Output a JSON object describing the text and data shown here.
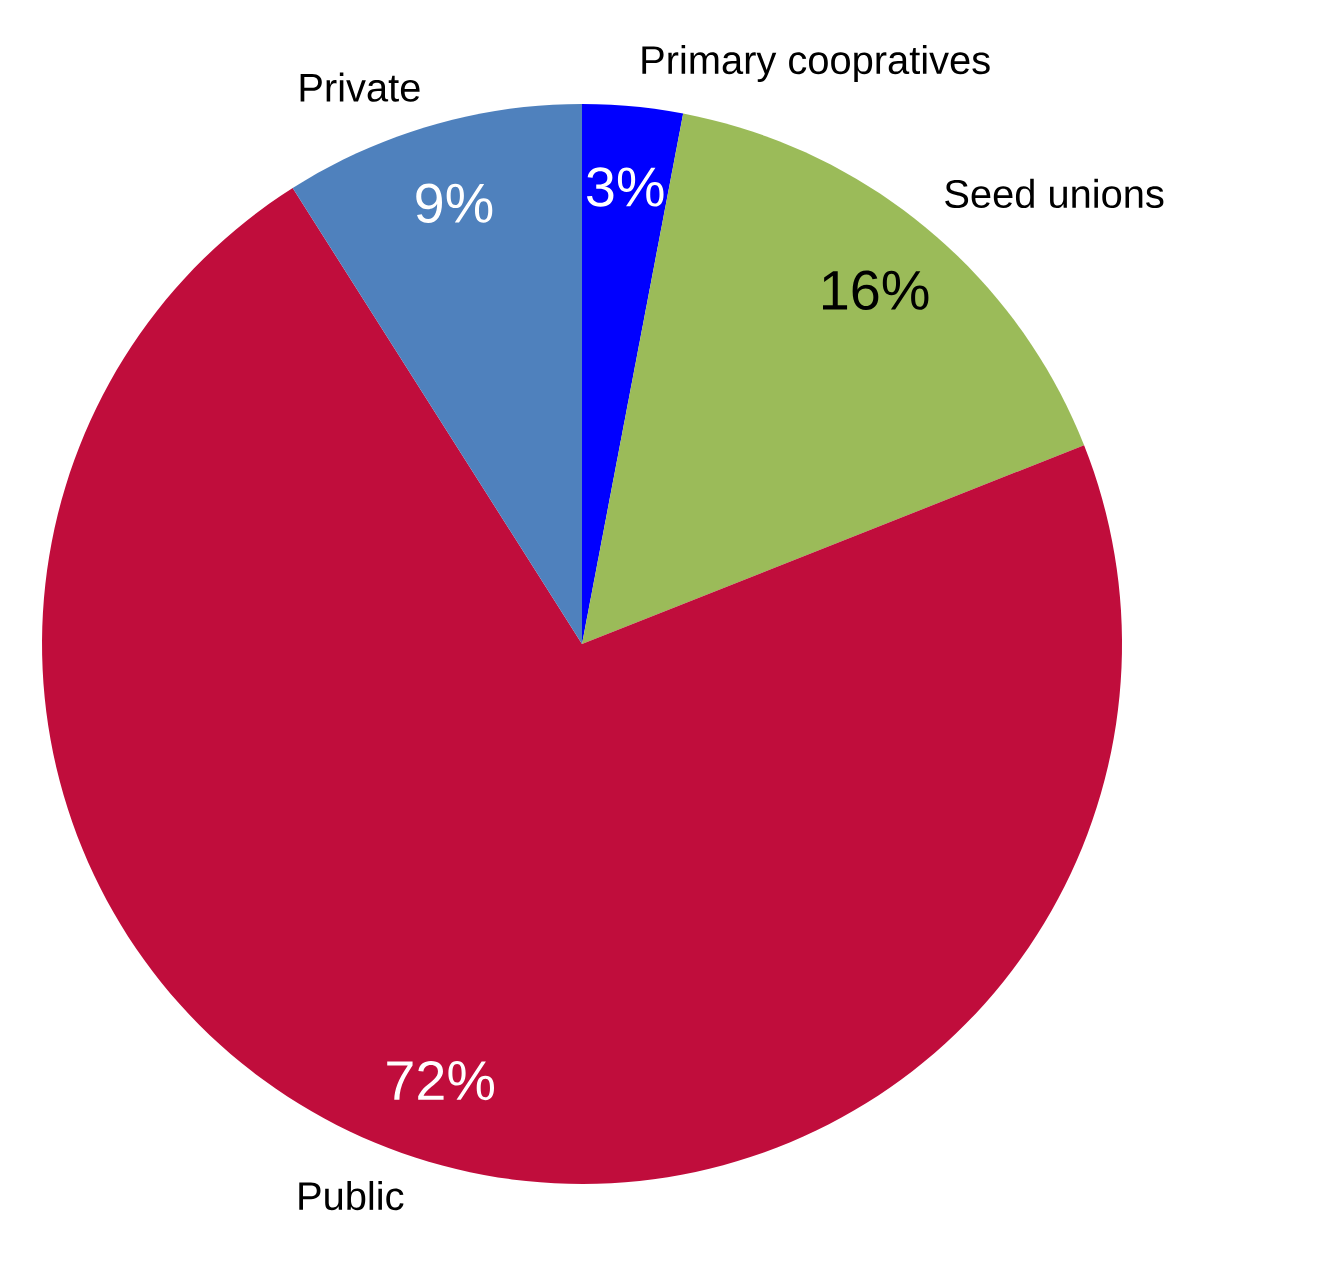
{
  "chart_data": {
    "type": "pie",
    "categories": [
      "Primary coopratives",
      "Seed unions",
      "Public",
      "Private"
    ],
    "values": [
      3,
      16,
      72,
      9
    ],
    "colors": [
      "#0000ff",
      "#9bbb59",
      "#c00d3c",
      "#4f81bd"
    ],
    "value_labels": [
      "3%",
      "16%",
      "72%",
      "9%"
    ]
  }
}
